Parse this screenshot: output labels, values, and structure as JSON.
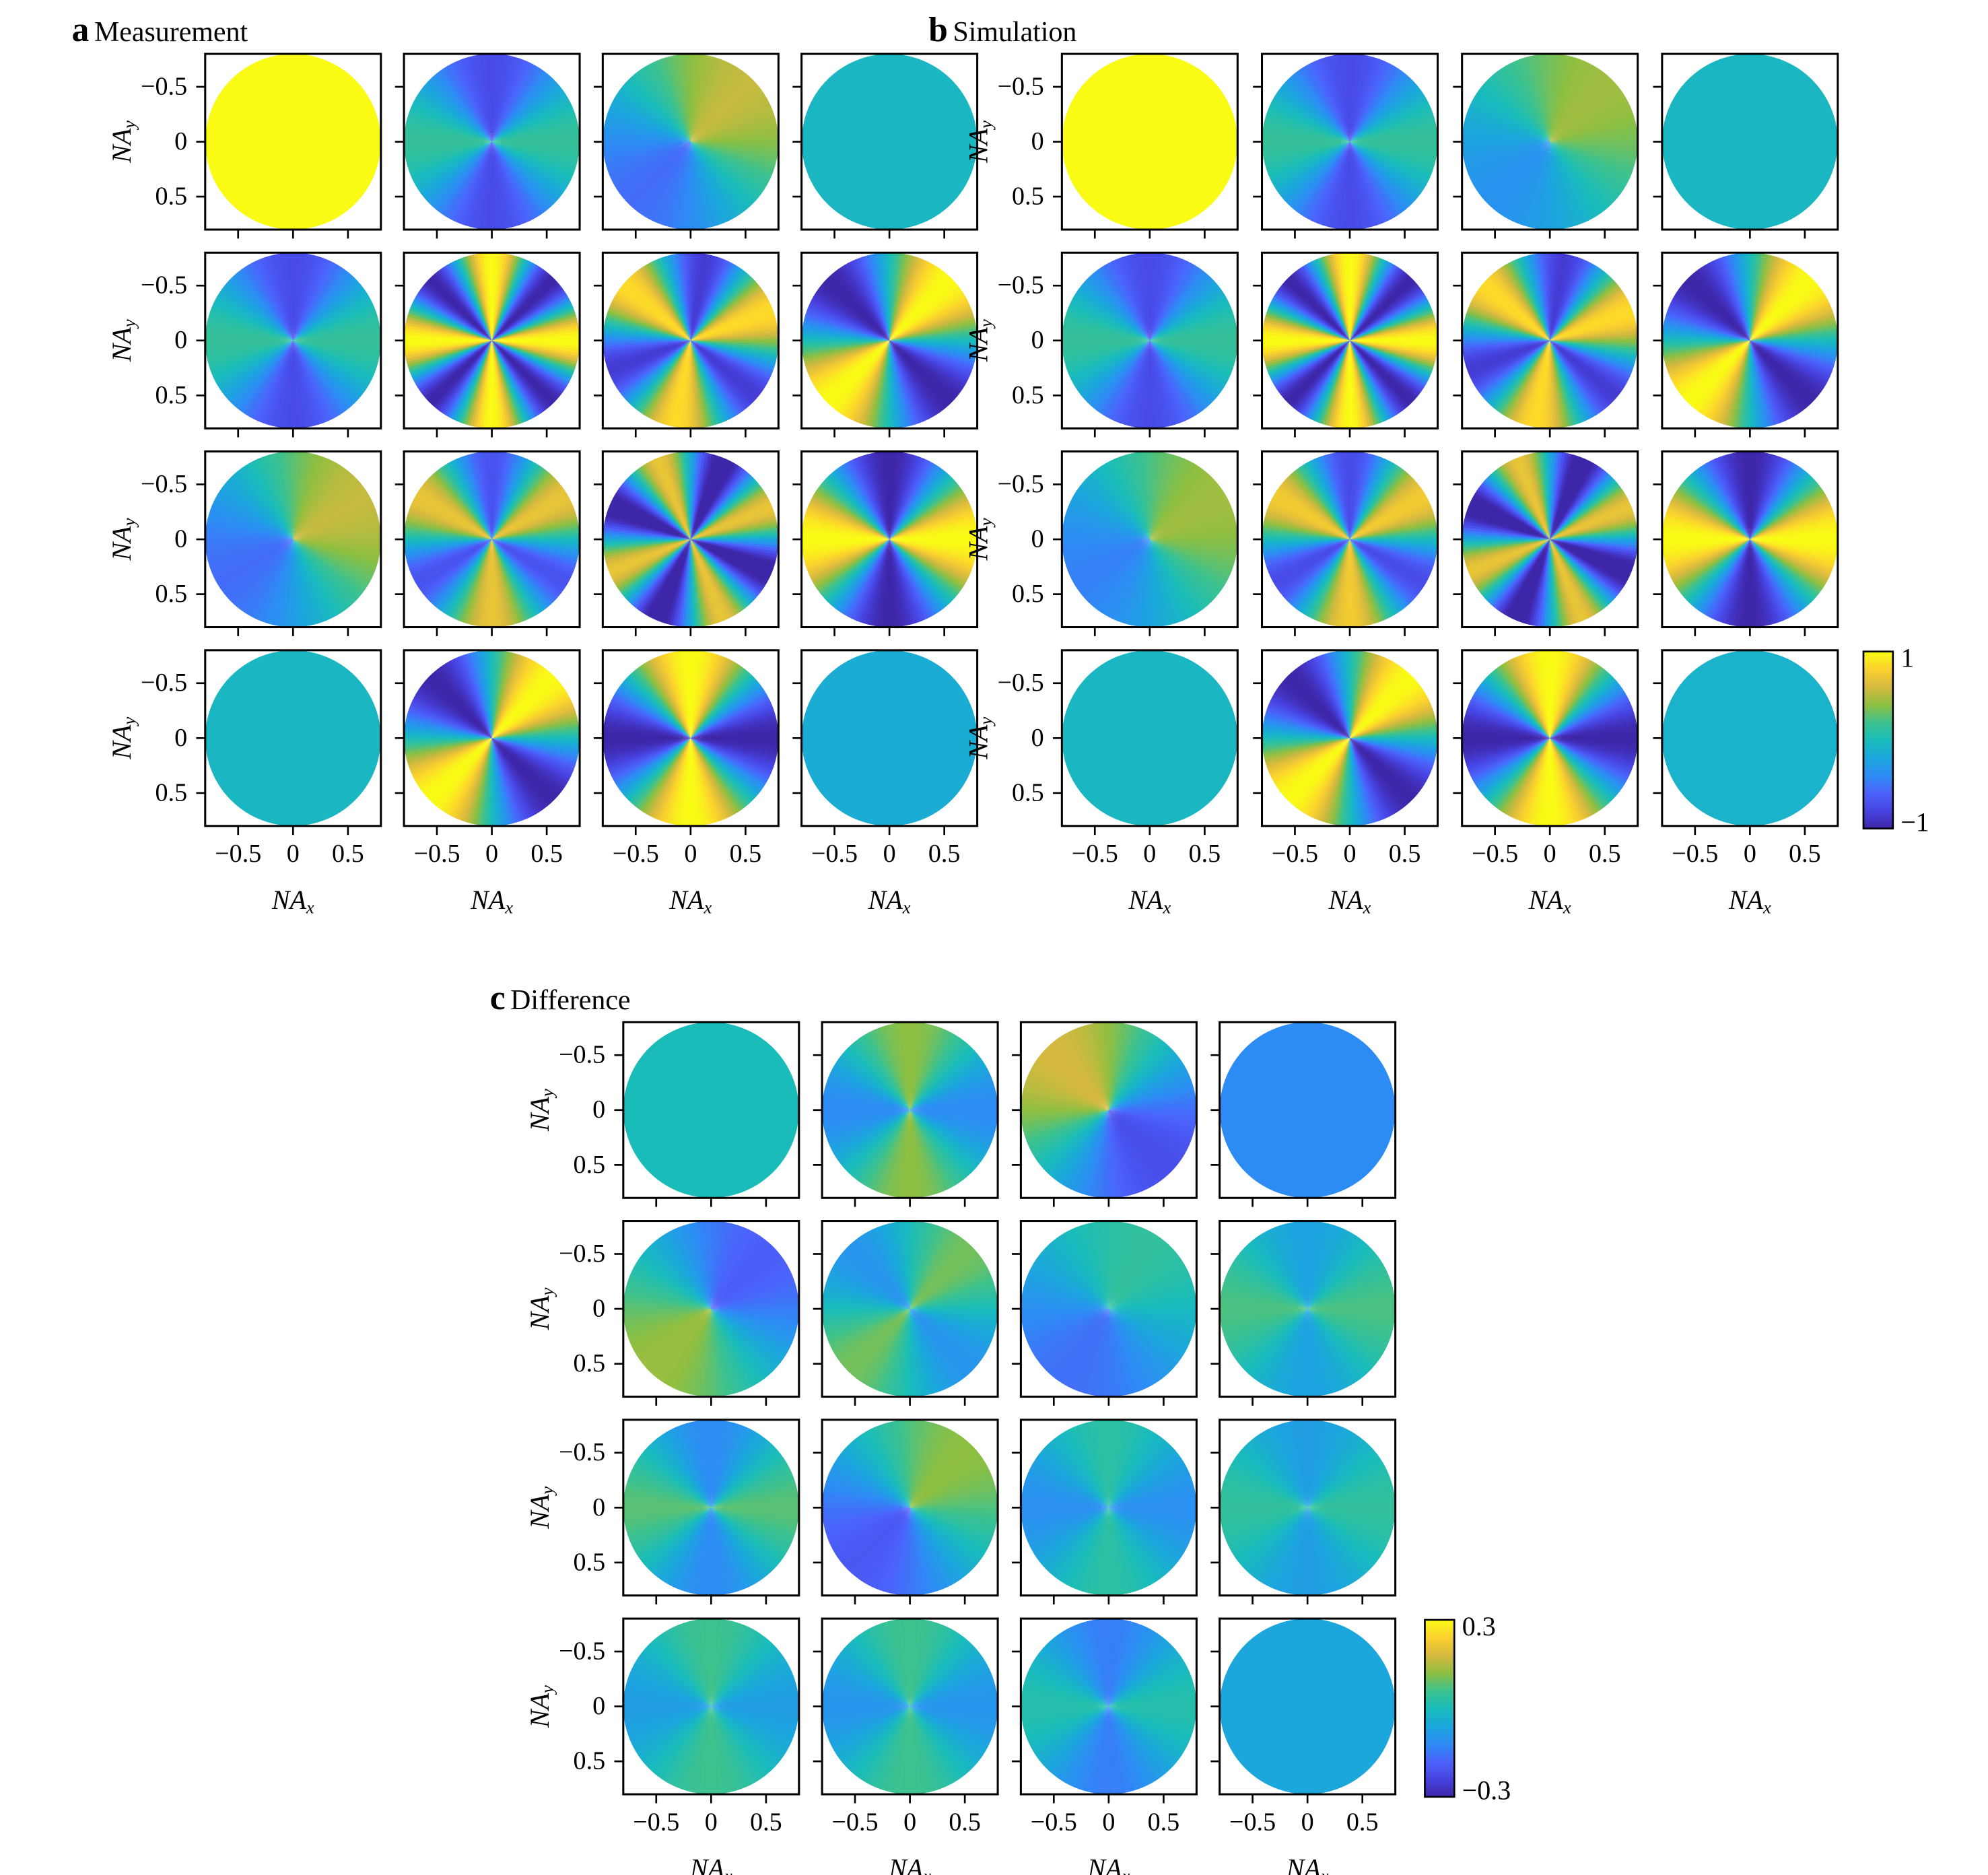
{
  "figure": {
    "panels": [
      {
        "id": "a",
        "letter": "a",
        "title": "Measurement",
        "colorbar": {
          "max_label": "1",
          "min_label": "−1"
        }
      },
      {
        "id": "b",
        "letter": "b",
        "title": "Simulation",
        "colorbar": {
          "max_label": "1",
          "min_label": "−1"
        }
      },
      {
        "id": "c",
        "letter": "c",
        "title": "Difference",
        "colorbar": {
          "max_label": "0.3",
          "min_label": "−0.3"
        }
      }
    ],
    "colormap": [
      "#3e26a8",
      "#4743e0",
      "#4b63fb",
      "#2d8cf4",
      "#1ba7dc",
      "#1abcba",
      "#3ec28e",
      "#8ebf41",
      "#d6b93f",
      "#fbd12e",
      "#f9fb15"
    ],
    "axis": {
      "xlabel_main": "NA",
      "xlabel_sub": "x",
      "ylabel_main": "NA",
      "ylabel_sub": "y",
      "x_ticks": [
        "−0.5",
        "0",
        "0.5"
      ],
      "y_ticks": [
        "−0.5",
        "0",
        "0.5"
      ]
    }
  },
  "chart_data": [
    {
      "type": "heatmap",
      "panel": "a",
      "title": "Measurement",
      "rows": 4,
      "cols": 4,
      "grid": false,
      "xlabel": "NA_x",
      "ylabel": "NA_y",
      "xlim": [
        -0.8,
        0.8
      ],
      "ylim": [
        0.8,
        -0.8
      ],
      "x_ticks": [
        -0.5,
        0,
        0.5
      ],
      "y_ticks": [
        -0.5,
        0,
        0.5
      ],
      "aperture_radius": 0.8,
      "color_range": [
        -1,
        1
      ],
      "colorbar_ticks": [
        1,
        -1
      ],
      "cells": [
        [
          {
            "pattern": "uniform",
            "value": 1.0
          },
          {
            "pattern": "angular",
            "n": 2,
            "phase": 0,
            "amplitude": 0.45,
            "offset": -0.3
          },
          {
            "pattern": "angular",
            "n": 1,
            "phase": 45,
            "amplitude": 0.55,
            "offset": 0.0
          },
          {
            "pattern": "uniform",
            "value": -0.05
          }
        ],
        [
          {
            "pattern": "angular",
            "n": 2,
            "phase": 0,
            "amplitude": 0.45,
            "offset": -0.3
          },
          {
            "pattern": "angular",
            "n": 4,
            "phase": 0,
            "amplitude": 1.0,
            "offset": 0.0
          },
          {
            "pattern": "angular",
            "n": 3,
            "phase": 20,
            "amplitude": 0.85,
            "offset": 0.0
          },
          {
            "pattern": "angular",
            "n": 2,
            "phase": 45,
            "amplitude": 1.0,
            "offset": 0.0
          }
        ],
        [
          {
            "pattern": "angular",
            "n": 1,
            "phase": 30,
            "amplitude": 0.55,
            "offset": 0.0
          },
          {
            "pattern": "angular",
            "n": 3,
            "phase": 30,
            "amplitude": 0.7,
            "offset": 0.0
          },
          {
            "pattern": "angular",
            "n": 4,
            "phase": 22,
            "amplitude": 0.9,
            "offset": -0.2
          },
          {
            "pattern": "angular",
            "n": 2,
            "phase": 0,
            "amplitude": 1.0,
            "offset": 0.0
          }
        ],
        [
          {
            "pattern": "uniform",
            "value": -0.05
          },
          {
            "pattern": "angular",
            "n": 2,
            "phase": 45,
            "amplitude": 1.0,
            "offset": 0.0
          },
          {
            "pattern": "angular",
            "n": 2,
            "phase": 90,
            "amplitude": 1.0,
            "offset": 0.0
          },
          {
            "pattern": "uniform",
            "value": -0.15
          }
        ]
      ]
    },
    {
      "type": "heatmap",
      "panel": "b",
      "title": "Simulation",
      "rows": 4,
      "cols": 4,
      "grid": false,
      "xlabel": "NA_x",
      "ylabel": "NA_y",
      "xlim": [
        -0.8,
        0.8
      ],
      "ylim": [
        0.8,
        -0.8
      ],
      "x_ticks": [
        -0.5,
        0,
        0.5
      ],
      "y_ticks": [
        -0.5,
        0,
        0.5
      ],
      "aperture_radius": 0.8,
      "color_range": [
        -1,
        1
      ],
      "colorbar_ticks": [
        1,
        -1
      ],
      "cells": [
        [
          {
            "pattern": "uniform",
            "value": 1.0
          },
          {
            "pattern": "angular",
            "n": 2,
            "phase": 0,
            "amplitude": 0.45,
            "offset": -0.3
          },
          {
            "pattern": "angular",
            "n": 1,
            "phase": 45,
            "amplitude": 0.4,
            "offset": 0.05
          },
          {
            "pattern": "uniform",
            "value": -0.05
          }
        ],
        [
          {
            "pattern": "angular",
            "n": 2,
            "phase": 0,
            "amplitude": 0.45,
            "offset": -0.3
          },
          {
            "pattern": "angular",
            "n": 4,
            "phase": 0,
            "amplitude": 1.0,
            "offset": 0.0
          },
          {
            "pattern": "angular",
            "n": 3,
            "phase": 20,
            "amplitude": 0.85,
            "offset": 0.0
          },
          {
            "pattern": "angular",
            "n": 2,
            "phase": 45,
            "amplitude": 1.0,
            "offset": 0.0
          }
        ],
        [
          {
            "pattern": "angular",
            "n": 1,
            "phase": 30,
            "amplitude": 0.45,
            "offset": 0.0
          },
          {
            "pattern": "angular",
            "n": 3,
            "phase": 30,
            "amplitude": 0.75,
            "offset": 0.0
          },
          {
            "pattern": "angular",
            "n": 4,
            "phase": 22,
            "amplitude": 0.9,
            "offset": -0.2
          },
          {
            "pattern": "angular",
            "n": 2,
            "phase": 0,
            "amplitude": 1.0,
            "offset": 0.0
          }
        ],
        [
          {
            "pattern": "uniform",
            "value": -0.05
          },
          {
            "pattern": "angular",
            "n": 2,
            "phase": 45,
            "amplitude": 1.0,
            "offset": 0.0
          },
          {
            "pattern": "angular",
            "n": 2,
            "phase": 90,
            "amplitude": 1.0,
            "offset": 0.0
          },
          {
            "pattern": "uniform",
            "value": -0.1
          }
        ]
      ]
    },
    {
      "type": "heatmap",
      "panel": "c",
      "title": "Difference",
      "rows": 4,
      "cols": 4,
      "grid": false,
      "xlabel": "NA_x",
      "ylabel": "NA_y",
      "xlim": [
        -0.8,
        0.8
      ],
      "ylim": [
        0.8,
        -0.8
      ],
      "x_ticks": [
        -0.5,
        0,
        0.5
      ],
      "y_ticks": [
        -0.5,
        0,
        0.5
      ],
      "aperture_radius": 0.8,
      "color_range": [
        -0.3,
        0.3
      ],
      "colorbar_ticks": [
        0.3,
        -0.3
      ],
      "cells": [
        [
          {
            "pattern": "uniform",
            "value": 0.0
          },
          {
            "pattern": "angular",
            "n": 2,
            "phase": 90,
            "amplitude": 0.12,
            "offset": 0.0
          },
          {
            "pattern": "angular",
            "n": 1,
            "phase": 135,
            "amplitude": 0.2,
            "offset": -0.02
          },
          {
            "pattern": "uniform",
            "value": -0.12
          }
        ],
        [
          {
            "pattern": "angular",
            "n": 1,
            "phase": 225,
            "amplitude": 0.16,
            "offset": -0.03
          },
          {
            "pattern": "angular",
            "n": 2,
            "phase": 45,
            "amplitude": 0.1,
            "offset": 0.0
          },
          {
            "pattern": "angular",
            "n": 1,
            "phase": 60,
            "amplitude": 0.1,
            "offset": -0.06
          },
          {
            "pattern": "angular",
            "n": 2,
            "phase": 0,
            "amplitude": 0.07,
            "offset": 0.0
          }
        ],
        [
          {
            "pattern": "angular",
            "n": 2,
            "phase": 0,
            "amplitude": 0.1,
            "offset": -0.02
          },
          {
            "pattern": "angular",
            "n": 1,
            "phase": 45,
            "amplitude": 0.16,
            "offset": -0.04
          },
          {
            "pattern": "angular",
            "n": 2,
            "phase": 90,
            "amplitude": 0.07,
            "offset": -0.04
          },
          {
            "pattern": "angular",
            "n": 2,
            "phase": 0,
            "amplitude": 0.06,
            "offset": -0.02
          }
        ],
        [
          {
            "pattern": "angular",
            "n": 2,
            "phase": 90,
            "amplitude": 0.07,
            "offset": -0.01
          },
          {
            "pattern": "angular",
            "n": 2,
            "phase": 90,
            "amplitude": 0.08,
            "offset": -0.02
          },
          {
            "pattern": "angular",
            "n": 2,
            "phase": 0,
            "amplitude": 0.08,
            "offset": -0.06
          },
          {
            "pattern": "uniform",
            "value": -0.06
          }
        ]
      ]
    }
  ]
}
